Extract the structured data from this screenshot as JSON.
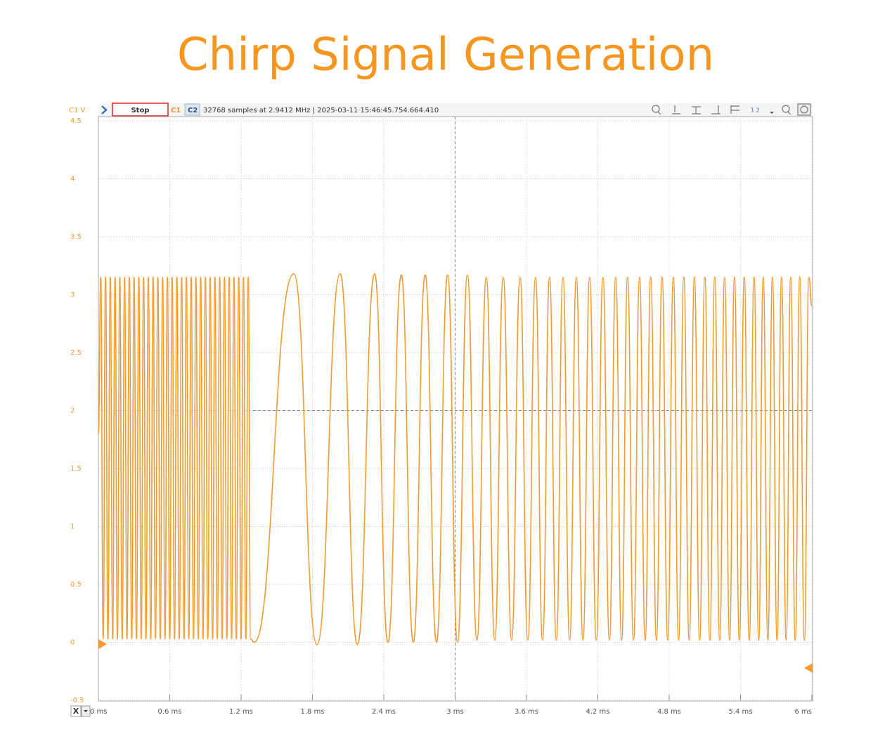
{
  "toolbar": {
    "channel_unit": "C1 V",
    "stop": "Stop",
    "c1": "C1",
    "c2": "C2",
    "info": "32768 samples at 2.9412 MHz  | 2025-03-11 15:46:45.754.664.410",
    "x_button": "X"
  },
  "chart_data": {
    "type": "line",
    "title": "Chirp Signal Generation",
    "xlim": [
      0,
      6
    ],
    "ylim": [
      -0.5,
      4.5
    ],
    "xticks": [
      {
        "value": 0,
        "label": "0 ms"
      },
      {
        "value": 0.6,
        "label": "0.6 ms"
      },
      {
        "value": 1.2,
        "label": "1.2 ms"
      },
      {
        "value": 1.8,
        "label": "1.8 ms"
      },
      {
        "value": 2.4,
        "label": "2.4 ms"
      },
      {
        "value": 3,
        "label": "3 ms"
      },
      {
        "value": 3.6,
        "label": "3.6 ms"
      },
      {
        "value": 4.2,
        "label": "4.2 ms"
      },
      {
        "value": 4.8,
        "label": "4.8 ms"
      },
      {
        "value": 5.4,
        "label": "5.4 ms"
      },
      {
        "value": 6,
        "label": "6 ms"
      }
    ],
    "yticks": [
      -0.5,
      0,
      0.5,
      1,
      1.5,
      2,
      2.5,
      3,
      3.5,
      4,
      4.5
    ],
    "grid": true,
    "trigger_time": 3,
    "trigger_level": 2,
    "series": [
      {
        "name": "C1",
        "color": "#f39a2e",
        "x": [
          0,
          0.02,
          0.04,
          0.06,
          0.08,
          0.1,
          0.12,
          0.14,
          0.16,
          0.18,
          0.2,
          0.22,
          0.24,
          0.26,
          0.28,
          0.3,
          0.32,
          0.34,
          0.36,
          0.38,
          0.4,
          0.42,
          0.44,
          0.46,
          0.48,
          0.5,
          0.52,
          0.54,
          0.56,
          0.58,
          0.6,
          0.62,
          0.64,
          0.66,
          0.68,
          0.7,
          0.72,
          0.74,
          0.76,
          0.78,
          0.8,
          0.82,
          0.84,
          0.86,
          0.88,
          0.9,
          0.92,
          0.94,
          0.96,
          0.98,
          1,
          1.02,
          1.04,
          1.06,
          1.08,
          1.1,
          1.12,
          1.14,
          1.16,
          1.18,
          1.2,
          1.22,
          1.24,
          1.26,
          1.28,
          1.31,
          1.643,
          1.838,
          2.033,
          2.178,
          2.323,
          2.435,
          2.547,
          2.648,
          2.748,
          2.843,
          2.937,
          3.02,
          3.103,
          3.183,
          3.262,
          3.333,
          3.404,
          3.475,
          3.546,
          3.611,
          3.676,
          3.735,
          3.794,
          3.851,
          3.907,
          3.963,
          4.019,
          4.075,
          4.131,
          4.187,
          4.243,
          4.297,
          4.35,
          4.4,
          4.45,
          4.5,
          4.551,
          4.598,
          4.645,
          4.693,
          4.74,
          4.788,
          4.835,
          4.879,
          4.923,
          4.968,
          5.012,
          5.056,
          5.1,
          5.142,
          5.183,
          5.225,
          5.266,
          5.308,
          5.349,
          5.39,
          5.431,
          5.473,
          5.514,
          5.553,
          5.591,
          5.63,
          5.668,
          5.707,
          5.745,
          5.784,
          5.822,
          5.86,
          5.898,
          5.937,
          5.975,
          6
        ],
        "values": [
          1.8,
          3.15,
          0.03,
          3.15,
          0.03,
          3.15,
          0.03,
          3.15,
          0.03,
          3.15,
          0.03,
          3.15,
          0.03,
          3.15,
          0.03,
          3.15,
          0.03,
          3.15,
          0.03,
          3.15,
          0.03,
          3.15,
          0.03,
          3.15,
          0.03,
          3.15,
          0.03,
          3.15,
          0.03,
          3.15,
          0.03,
          3.15,
          0.03,
          3.15,
          0.03,
          3.15,
          0.03,
          3.15,
          0.03,
          3.15,
          0.03,
          3.15,
          0.03,
          3.15,
          0.03,
          3.15,
          0.03,
          3.15,
          0.03,
          3.15,
          0.03,
          3.15,
          0.03,
          3.15,
          0.03,
          3.15,
          0.03,
          3.15,
          0.03,
          3.15,
          0.03,
          3.15,
          0.03,
          3.15,
          0.03,
          0,
          3.18,
          -0.02,
          3.18,
          -0.02,
          3.18,
          0,
          3.17,
          0,
          3.17,
          0,
          3.17,
          0,
          3.17,
          0.02,
          3.15,
          0.02,
          3.15,
          0.02,
          3.15,
          0.02,
          3.15,
          0.02,
          3.15,
          0.02,
          3.15,
          0.02,
          3.15,
          0.02,
          3.15,
          0.02,
          3.15,
          0.02,
          3.15,
          0.02,
          3.15,
          0.02,
          3.15,
          0.02,
          3.15,
          0.02,
          3.15,
          0.02,
          3.15,
          0.02,
          3.15,
          0.02,
          3.15,
          0.02,
          3.15,
          0.02,
          3.15,
          0.02,
          3.15,
          0.02,
          3.15,
          0.02,
          3.15,
          0.02,
          3.15,
          0.02,
          3.15,
          0.02,
          3.15,
          0.02,
          3.15,
          0.02,
          3.15,
          0.02,
          3.15,
          0.02,
          3.15,
          2.9
        ]
      }
    ]
  }
}
